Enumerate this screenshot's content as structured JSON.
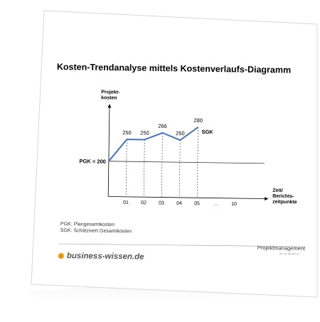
{
  "document": {
    "title": "Kosten-Trendanalyse mittels Kostenverlaufs-Diagramm",
    "legend": [
      "PGK: Plangesamtkosten",
      "SGK: Schätzwert Gesamtkosten"
    ],
    "brand": "business-wissen.de",
    "footer_right": "Projektmanagement",
    "footer_small": "Art. Nr. 00 000 15"
  },
  "colors": {
    "line": "#4472c4",
    "brand_dot": "#f29400",
    "axis": "#000000"
  },
  "chart_data": {
    "type": "line",
    "title": "",
    "ylabel": "Projekt-\nkosten",
    "xlabel": "Zeit/\nBerichts-\nzeitpunkte",
    "x_tick_labels": [
      "01",
      "02",
      "03",
      "04",
      "05",
      "…",
      "10"
    ],
    "series": [
      {
        "name": "SGK",
        "x": [
          0,
          1,
          2,
          3,
          4,
          5
        ],
        "values": [
          200,
          250,
          250,
          266,
          250,
          280
        ],
        "labels": [
          "",
          "250",
          "250",
          "266",
          "250",
          "280"
        ]
      }
    ],
    "baseline": {
      "label": "PGK = 200",
      "value": 200
    },
    "ylim": [
      120,
      310
    ],
    "grid": false
  }
}
